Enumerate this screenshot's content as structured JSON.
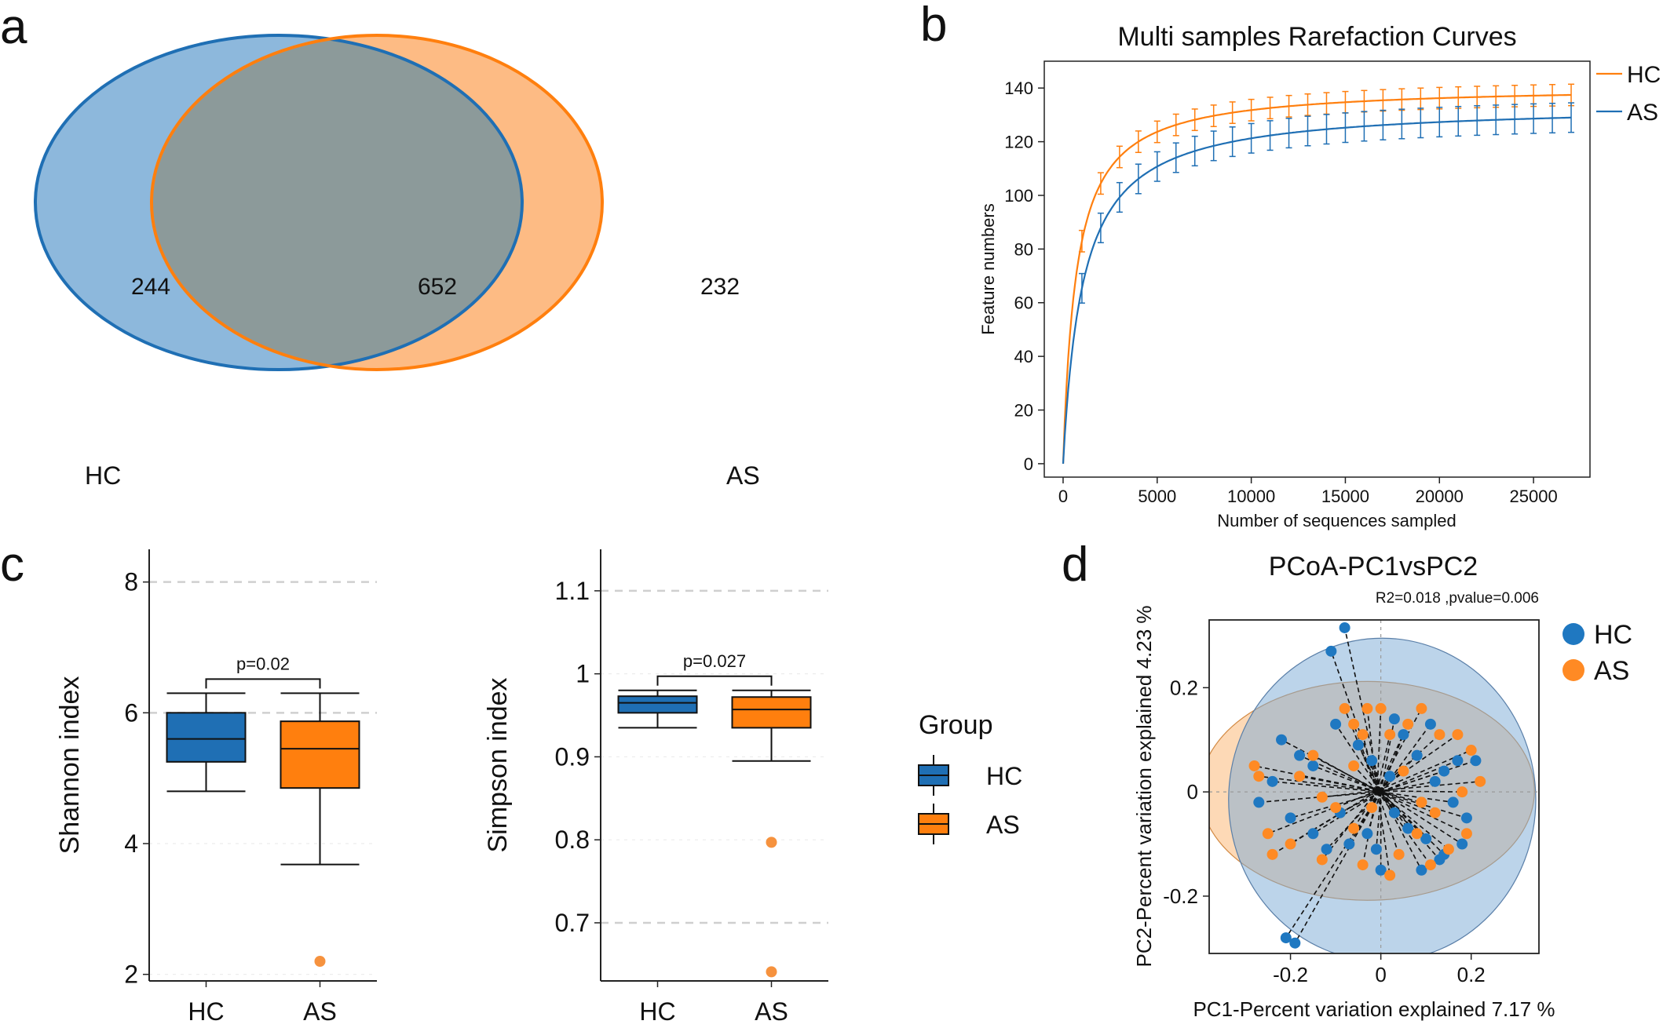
{
  "panels": {
    "a": "a",
    "b": "b",
    "c": "c",
    "d": "d"
  },
  "colors": {
    "hc": "#1f6fb4",
    "as": "#ff7f0e",
    "hc_fill": "#8db8dc",
    "as_fill": "#fdbb84",
    "overlap": "#8c9a9a"
  },
  "chart_data": [
    {
      "type": "venn",
      "sets": [
        {
          "name": "HC",
          "unique": 244
        },
        {
          "name": "AS",
          "unique": 232
        }
      ],
      "overlap": 652
    },
    {
      "type": "line",
      "title": "Multi samples Rarefaction Curves",
      "xlabel": "Number of sequences sampled",
      "ylabel": "Feature numbers",
      "xlim": [
        -1000,
        28000
      ],
      "ylim": [
        -5,
        150
      ],
      "xticks": [
        "0",
        "5000",
        "10000",
        "15000",
        "20000",
        "25000"
      ],
      "yticks": [
        "0",
        "20",
        "40",
        "60",
        "80",
        "100",
        "120",
        "140"
      ],
      "legend": "top-right",
      "series": [
        {
          "name": "HC",
          "asymptote": 141,
          "half_sat": 700,
          "err": 4
        },
        {
          "name": "AS",
          "asymptote": 134,
          "half_sat": 1050,
          "err": 5.5
        }
      ],
      "x_max": 27000
    },
    {
      "type": "box",
      "ylabel": "Shannon index",
      "categories": [
        "HC",
        "AS"
      ],
      "yticks": [
        "2",
        "4",
        "6",
        "8"
      ],
      "ylim": [
        1.9,
        8.5
      ],
      "gridlines": [
        8,
        6
      ],
      "boxes": [
        {
          "group": "HC",
          "whisker_low": 4.8,
          "q1": 5.25,
          "median": 5.6,
          "q3": 6.0,
          "whisker_high": 6.3,
          "outliers": []
        },
        {
          "group": "AS",
          "whisker_low": 3.68,
          "q1": 4.85,
          "median": 5.45,
          "q3": 5.87,
          "whisker_high": 6.3,
          "outliers": [
            2.2
          ]
        }
      ],
      "annotation": "p=0.02"
    },
    {
      "type": "box",
      "ylabel": "Simpson index",
      "categories": [
        "HC",
        "AS"
      ],
      "yticks": [
        "0.7",
        "0.8",
        "0.9",
        "1",
        "1.1"
      ],
      "ylim": [
        0.63,
        1.15
      ],
      "gridlines": [
        1.1,
        0.7
      ],
      "boxes": [
        {
          "group": "HC",
          "whisker_low": 0.935,
          "q1": 0.953,
          "median": 0.965,
          "q3": 0.973,
          "whisker_high": 0.98,
          "outliers": []
        },
        {
          "group": "AS",
          "whisker_low": 0.895,
          "q1": 0.935,
          "median": 0.957,
          "q3": 0.972,
          "whisker_high": 0.98,
          "outliers": [
            0.797,
            0.641
          ]
        }
      ],
      "annotation": "p=0.027",
      "legend_title": "Group",
      "legend": [
        "HC",
        "AS"
      ]
    },
    {
      "type": "scatter",
      "title": "PCoA-PC1vsPC2",
      "subtitle": "R2=0.018 ,pvalue=0.006",
      "xlabel": "PC1-Percent variation explained 7.17 %",
      "ylabel": "PC2-Percent variation explained 4.23 %",
      "xlim": [
        -0.38,
        0.35
      ],
      "ylim": [
        -0.31,
        0.33
      ],
      "xticks": [
        "-0.2",
        "0",
        "0.2"
      ],
      "yticks": [
        "-0.2",
        "0",
        "0.2"
      ],
      "legend": [
        "HC",
        "AS"
      ],
      "centroids": {
        "HC": [
          0.0,
          0.0
        ],
        "AS": [
          -0.008,
          0.002
        ]
      },
      "ellipses": {
        "HC": {
          "cx": 0.003,
          "cy": -0.015,
          "rx": 0.34,
          "ry": 0.31
        },
        "AS": {
          "cx": -0.03,
          "cy": 0.002,
          "rx": 0.37,
          "ry": 0.21
        }
      },
      "series": [
        {
          "name": "HC",
          "points": [
            [
              -0.08,
              0.315
            ],
            [
              -0.11,
              0.27
            ],
            [
              -0.21,
              -0.28
            ],
            [
              -0.19,
              -0.29
            ],
            [
              -0.22,
              0.1
            ],
            [
              -0.18,
              0.07
            ],
            [
              -0.15,
              0.05
            ],
            [
              -0.24,
              0.02
            ],
            [
              -0.27,
              -0.02
            ],
            [
              -0.2,
              -0.05
            ],
            [
              -0.15,
              -0.08
            ],
            [
              -0.12,
              -0.11
            ],
            [
              -0.09,
              -0.04
            ],
            [
              -0.1,
              0.13
            ],
            [
              -0.05,
              0.09
            ],
            [
              -0.02,
              0.06
            ],
            [
              0.03,
              0.14
            ],
            [
              0.05,
              0.11
            ],
            [
              0.08,
              0.07
            ],
            [
              0.11,
              0.13
            ],
            [
              0.14,
              0.04
            ],
            [
              0.17,
              0.06
            ],
            [
              0.21,
              0.06
            ],
            [
              0.16,
              -0.02
            ],
            [
              0.19,
              -0.05
            ],
            [
              0.18,
              -0.1
            ],
            [
              0.13,
              -0.13
            ],
            [
              0.1,
              -0.09
            ],
            [
              0.06,
              -0.07
            ],
            [
              0.03,
              -0.04
            ],
            [
              -0.01,
              -0.11
            ],
            [
              -0.03,
              -0.08
            ],
            [
              0.0,
              -0.15
            ],
            [
              0.09,
              -0.15
            ],
            [
              0.14,
              -0.12
            ],
            [
              -0.07,
              -0.1
            ],
            [
              0.02,
              0.03
            ],
            [
              0.12,
              0.02
            ]
          ]
        },
        {
          "name": "AS",
          "points": [
            [
              -0.28,
              0.05
            ],
            [
              -0.27,
              0.03
            ],
            [
              -0.2,
              -0.1
            ],
            [
              -0.24,
              -0.12
            ],
            [
              -0.25,
              -0.08
            ],
            [
              -0.15,
              0.07
            ],
            [
              -0.13,
              -0.13
            ],
            [
              -0.08,
              0.16
            ],
            [
              -0.06,
              0.13
            ],
            [
              -0.04,
              0.11
            ],
            [
              -0.03,
              0.16
            ],
            [
              0.0,
              0.16
            ],
            [
              0.02,
              0.11
            ],
            [
              0.06,
              0.13
            ],
            [
              0.09,
              0.16
            ],
            [
              0.13,
              0.11
            ],
            [
              0.17,
              0.11
            ],
            [
              0.2,
              0.08
            ],
            [
              0.22,
              0.02
            ],
            [
              0.18,
              0.0
            ],
            [
              0.19,
              -0.08
            ],
            [
              0.15,
              -0.11
            ],
            [
              0.11,
              -0.14
            ],
            [
              0.08,
              -0.08
            ],
            [
              0.04,
              -0.12
            ],
            [
              0.02,
              -0.16
            ],
            [
              -0.04,
              -0.14
            ],
            [
              -0.06,
              -0.07
            ],
            [
              -0.1,
              -0.03
            ],
            [
              -0.13,
              -0.01
            ],
            [
              -0.18,
              0.03
            ],
            [
              -0.06,
              0.05
            ],
            [
              0.05,
              0.04
            ],
            [
              0.09,
              -0.02
            ],
            [
              0.12,
              -0.04
            ],
            [
              -0.02,
              -0.03
            ]
          ]
        }
      ]
    }
  ]
}
